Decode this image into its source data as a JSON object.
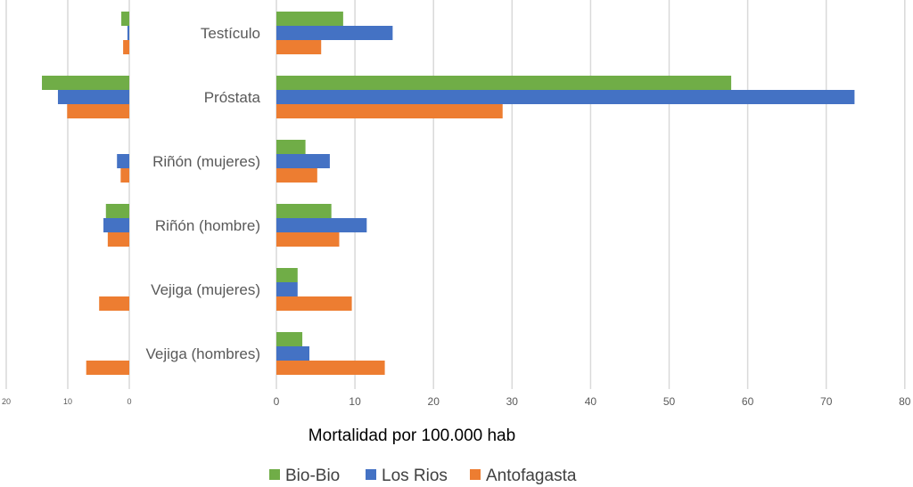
{
  "chart_data": {
    "type": "bar",
    "orientation": "horizontal",
    "title": "",
    "xlabel": "Mortalidad por 100.000 hab",
    "ylabel": "",
    "categories": [
      "Testículo",
      "Próstata",
      "Riñón (mujeres)",
      "Riñón (hombre)",
      "Vejiga (mujeres)",
      "Vejiga (hombres)"
    ],
    "legend": {
      "position": "bottom",
      "entries": [
        "Bio-Bio",
        "Los Rios",
        "Antofagasta"
      ]
    },
    "grid": true,
    "panels": [
      {
        "name": "left",
        "direction": "reversed",
        "xlim": [
          0,
          20
        ],
        "ticks": [
          "20",
          "10",
          "0"
        ],
        "tick_values": [
          20,
          10,
          0
        ],
        "series": [
          {
            "name": "Bio-Bio",
            "color": "#70AD47",
            "values": [
              1.3,
              14.2,
              0,
              3.8,
              0,
              0
            ]
          },
          {
            "name": "Los Rios",
            "color": "#4472C4",
            "values": [
              0.3,
              11.6,
              2.0,
              4.2,
              0,
              0
            ]
          },
          {
            "name": "Antofagasta",
            "color": "#ED7D31",
            "values": [
              1.0,
              10.1,
              1.4,
              3.5,
              4.9,
              7.0
            ]
          }
        ]
      },
      {
        "name": "right",
        "direction": "normal",
        "xlim": [
          0,
          80
        ],
        "ticks": [
          "0",
          "10",
          "20",
          "30",
          "40",
          "50",
          "60",
          "70",
          "80"
        ],
        "tick_values": [
          0,
          10,
          20,
          30,
          40,
          50,
          60,
          70,
          80
        ],
        "series": [
          {
            "name": "Bio-Bio",
            "color": "#70AD47",
            "values": [
              8.5,
              57.9,
              3.7,
              7.0,
              2.7,
              3.3
            ]
          },
          {
            "name": "Los Rios",
            "color": "#4472C4",
            "values": [
              14.8,
              73.6,
              6.8,
              11.5,
              2.7,
              4.2
            ]
          },
          {
            "name": "Antofagasta",
            "color": "#ED7D31",
            "values": [
              5.7,
              28.8,
              5.2,
              8.0,
              9.6,
              13.8
            ]
          }
        ]
      }
    ]
  }
}
